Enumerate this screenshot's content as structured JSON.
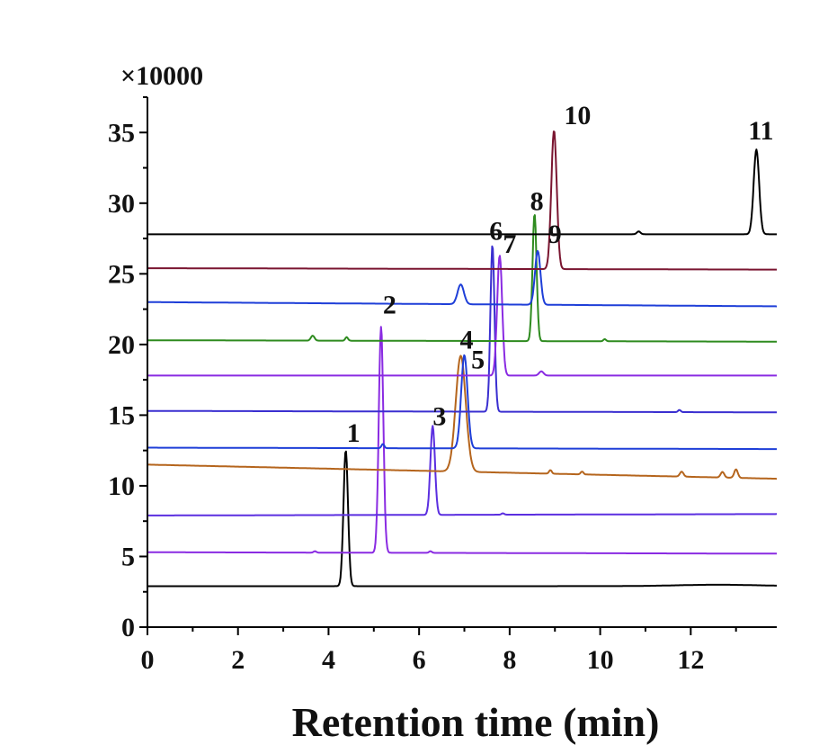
{
  "chart_data": {
    "type": "line",
    "title": "",
    "xlabel": "Retention time (min)",
    "ylabel": "",
    "y_multiplier_label": "×10000",
    "xlim": [
      0,
      13.9
    ],
    "ylim": [
      0,
      37.5
    ],
    "grid": false,
    "legend": "none",
    "x_ticks": [
      0,
      2,
      4,
      6,
      8,
      10,
      12
    ],
    "x_tick_labels": [
      "0",
      "2",
      "4",
      "6",
      "8",
      "10",
      "12"
    ],
    "y_ticks": [
      0,
      5,
      10,
      15,
      20,
      25,
      30,
      35
    ],
    "y_tick_labels": [
      "0",
      "5",
      "10",
      "15",
      "20",
      "25",
      "30",
      "35"
    ],
    "series": [
      {
        "color": "#000000",
        "baseline": 2.9,
        "end": 2.9,
        "peaks": [
          [
            4.38,
            9.6,
            0.05
          ],
          [
            12.6,
            0.1,
            0.9
          ]
        ]
      },
      {
        "color": "#8a2be2",
        "baseline": 5.3,
        "end": 5.2,
        "peaks": [
          [
            5.16,
            16.0,
            0.05
          ],
          [
            3.7,
            0.1,
            0.03
          ],
          [
            6.25,
            0.12,
            0.03
          ]
        ]
      },
      {
        "color": "#5b2fe0",
        "baseline": 7.9,
        "end": 8.0,
        "peaks": [
          [
            6.3,
            6.3,
            0.05
          ],
          [
            7.85,
            0.1,
            0.03
          ]
        ]
      },
      {
        "color": "#b5651d",
        "baseline": 11.5,
        "end": 10.5,
        "peaks": [
          [
            6.92,
            8.2,
            0.11
          ],
          [
            8.9,
            0.25,
            0.03
          ],
          [
            9.6,
            0.2,
            0.03
          ],
          [
            11.8,
            0.35,
            0.04
          ],
          [
            12.7,
            0.4,
            0.04
          ],
          [
            13.0,
            0.6,
            0.04
          ]
        ]
      },
      {
        "color": "#1f3fd8",
        "baseline": 12.7,
        "end": 12.6,
        "peaks": [
          [
            7.0,
            6.6,
            0.07
          ],
          [
            5.2,
            0.3,
            0.03
          ]
        ]
      },
      {
        "color": "#3a2fd0",
        "baseline": 15.3,
        "end": 15.2,
        "peaks": [
          [
            7.62,
            11.8,
            0.045
          ],
          [
            11.75,
            0.15,
            0.03
          ]
        ]
      },
      {
        "color": "#8a2be2",
        "baseline": 17.8,
        "end": 17.8,
        "peaks": [
          [
            7.78,
            8.5,
            0.055
          ],
          [
            8.7,
            0.3,
            0.05
          ]
        ]
      },
      {
        "color": "#2e8b1f",
        "baseline": 20.3,
        "end": 20.2,
        "peaks": [
          [
            8.55,
            9.0,
            0.045
          ],
          [
            3.65,
            0.35,
            0.04
          ],
          [
            4.4,
            0.25,
            0.03
          ],
          [
            10.1,
            0.15,
            0.03
          ]
        ]
      },
      {
        "color": "#1f3fd8",
        "baseline": 23.0,
        "end": 22.7,
        "peaks": [
          [
            8.62,
            3.8,
            0.06
          ],
          [
            6.92,
            1.4,
            0.07
          ]
        ]
      },
      {
        "color": "#7a1530",
        "baseline": 25.4,
        "end": 25.3,
        "peaks": [
          [
            8.98,
            9.8,
            0.06
          ]
        ]
      },
      {
        "color": "#000000",
        "baseline": 27.8,
        "end": 27.8,
        "peaks": [
          [
            13.45,
            6.0,
            0.06
          ],
          [
            10.85,
            0.2,
            0.04
          ]
        ]
      }
    ],
    "annotations": [
      {
        "text": "1",
        "x": 4.55,
        "y": 13.1
      },
      {
        "text": "2",
        "x": 5.35,
        "y": 22.2
      },
      {
        "text": "3",
        "x": 6.45,
        "y": 14.3
      },
      {
        "text": "4",
        "x": 7.05,
        "y": 19.7
      },
      {
        "text": "5",
        "x": 7.3,
        "y": 18.3
      },
      {
        "text": "6",
        "x": 7.7,
        "y": 27.4
      },
      {
        "text": "7",
        "x": 8.0,
        "y": 26.5
      },
      {
        "text": "8",
        "x": 8.6,
        "y": 29.5
      },
      {
        "text": "9",
        "x": 9.0,
        "y": 27.2
      },
      {
        "text": "10",
        "x": 9.5,
        "y": 35.6
      },
      {
        "text": "11",
        "x": 13.55,
        "y": 34.5
      }
    ]
  }
}
